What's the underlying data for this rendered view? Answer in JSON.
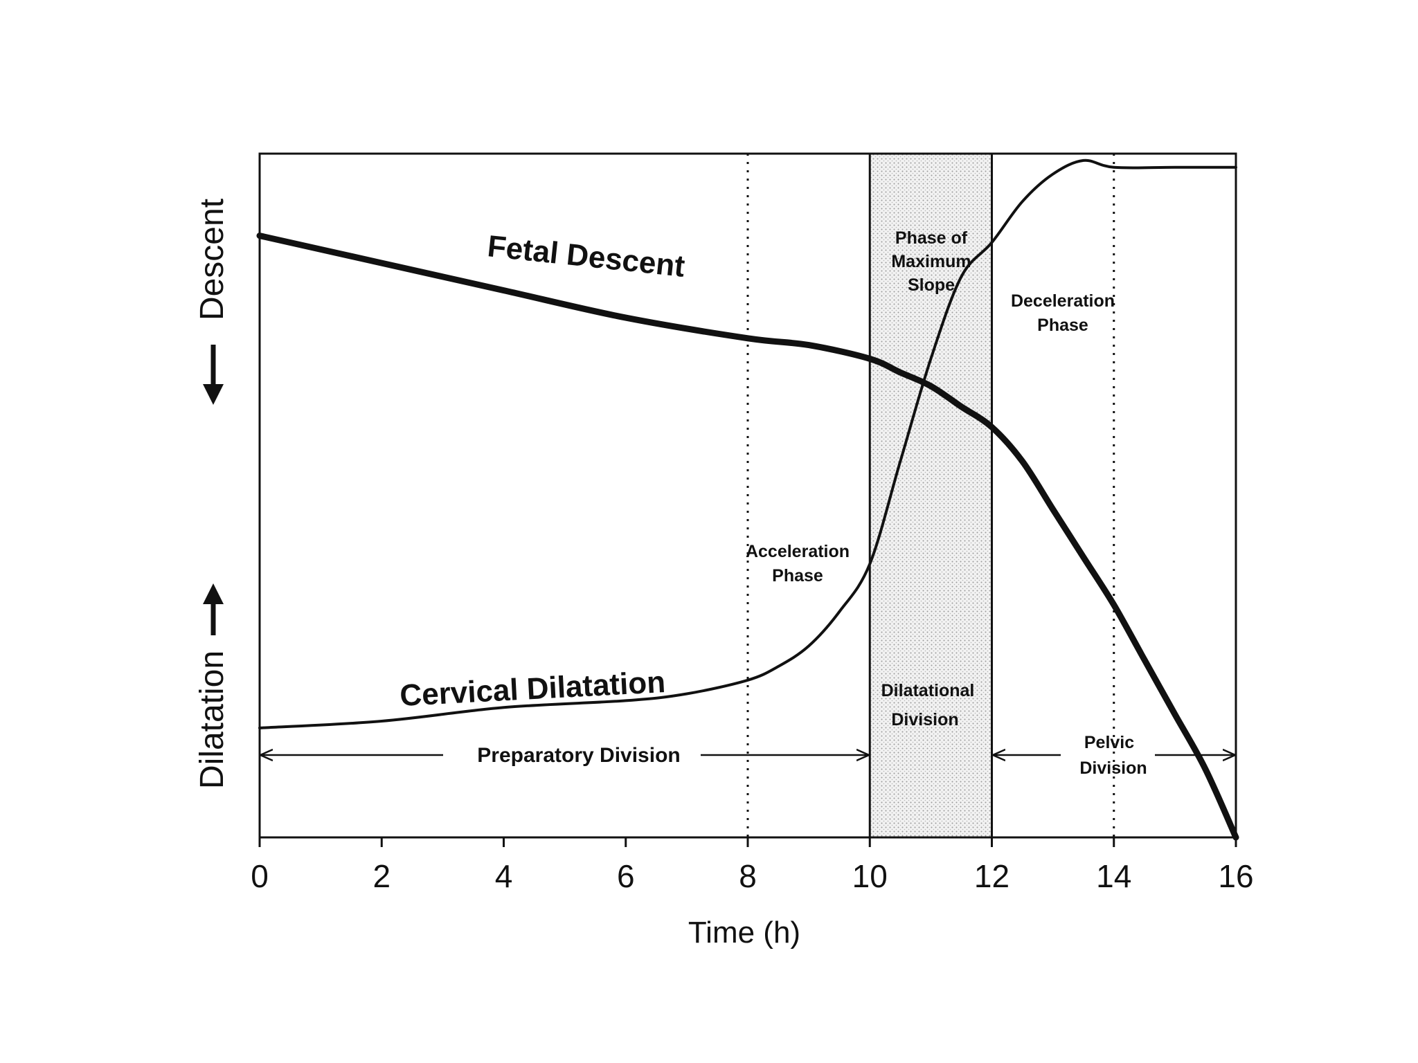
{
  "chart_data": {
    "type": "line",
    "xlabel": "Time (h)",
    "x_ticks": [
      0,
      2,
      4,
      6,
      8,
      10,
      12,
      14,
      16
    ],
    "xlim": [
      0,
      16
    ],
    "y_axis_labels": {
      "upper": "Descent",
      "lower": "Dilatation"
    },
    "grid": false,
    "series": [
      {
        "name": "Fetal Descent",
        "x": [
          0,
          2,
          4,
          6,
          8,
          9,
          10,
          10.5,
          11,
          11.5,
          12,
          12.5,
          13,
          13.5,
          14,
          14.5,
          15,
          15.5,
          16
        ],
        "y": [
          0.88,
          0.84,
          0.8,
          0.76,
          0.73,
          0.72,
          0.7,
          0.68,
          0.66,
          0.63,
          0.6,
          0.55,
          0.48,
          0.41,
          0.34,
          0.26,
          0.18,
          0.1,
          0.0
        ]
      },
      {
        "name": "Cervical Dilatation",
        "x": [
          0,
          2,
          4,
          6,
          7,
          8,
          8.5,
          9,
          9.5,
          10,
          10.5,
          11,
          11.5,
          12,
          12.5,
          13,
          13.5,
          14,
          15,
          16
        ],
        "y": [
          0.16,
          0.17,
          0.19,
          0.2,
          0.21,
          0.23,
          0.25,
          0.28,
          0.33,
          0.4,
          0.55,
          0.7,
          0.82,
          0.87,
          0.93,
          0.97,
          0.99,
          0.98,
          0.98,
          0.98
        ]
      }
    ],
    "phase_lines": [
      8,
      10,
      12,
      14,
      16
    ],
    "shaded_region": [
      10,
      12
    ],
    "annotations": {
      "max_slope": [
        "Phase of",
        "Maximum",
        "Slope"
      ],
      "deceleration": [
        "Deceleration",
        "Phase"
      ],
      "acceleration": [
        "Acceleration",
        "Phase"
      ],
      "dilatational": [
        "Dilatational",
        "Division"
      ],
      "pelvic": [
        "Pelvic",
        "Division"
      ],
      "preparatory": "Preparatory Division"
    }
  }
}
